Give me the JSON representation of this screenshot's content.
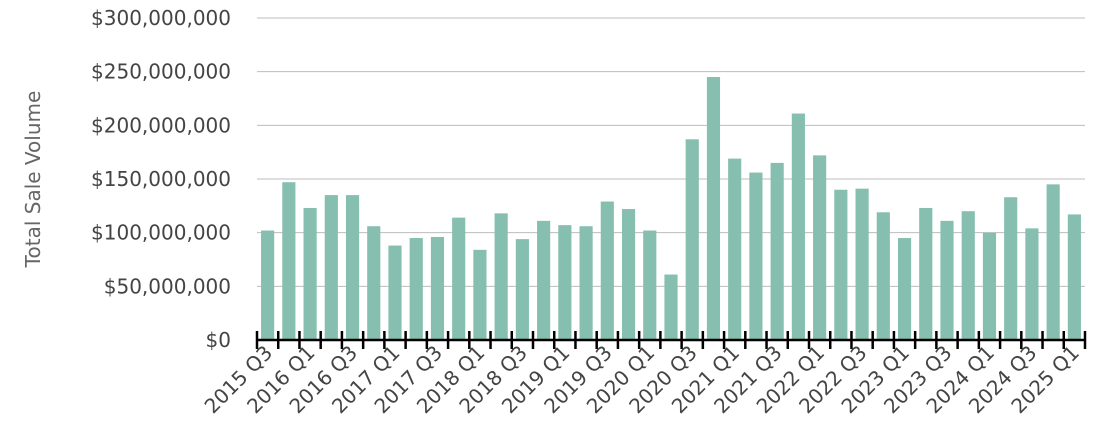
{
  "chart_data": {
    "type": "bar",
    "ylabel": "Total Sale Volume",
    "xlabel": "",
    "ylim": [
      0,
      300000000
    ],
    "yticks": [
      0,
      50000000,
      100000000,
      150000000,
      200000000,
      250000000,
      300000000
    ],
    "ytick_labels": [
      "$0",
      "$50,000,000",
      "$100,000,000",
      "$150,000,000",
      "$200,000,000",
      "$250,000,000",
      "$300,000,000"
    ],
    "grid": true,
    "bar_color": "#86bfb0",
    "categories": [
      "2015 Q3",
      "2015 Q4",
      "2016 Q1",
      "2016 Q2",
      "2016 Q3",
      "2016 Q4",
      "2017 Q1",
      "2017 Q2",
      "2017 Q3",
      "2017 Q4",
      "2018 Q1",
      "2018 Q2",
      "2018 Q3",
      "2018 Q4",
      "2019 Q1",
      "2019 Q2",
      "2019 Q3",
      "2019 Q4",
      "2020 Q1",
      "2020 Q2",
      "2020 Q3",
      "2020 Q4",
      "2021 Q1",
      "2021 Q2",
      "2021 Q3",
      "2021 Q4",
      "2022 Q1",
      "2022 Q2",
      "2022 Q3",
      "2022 Q4",
      "2023 Q1",
      "2023 Q2",
      "2023 Q3",
      "2023 Q4",
      "2024 Q1",
      "2024 Q2",
      "2024 Q3",
      "2024 Q4",
      "2025 Q1"
    ],
    "values": [
      102000000,
      147000000,
      123000000,
      135000000,
      135000000,
      106000000,
      88000000,
      95000000,
      96000000,
      114000000,
      84000000,
      118000000,
      94000000,
      111000000,
      107000000,
      106000000,
      129000000,
      122000000,
      102000000,
      61000000,
      187000000,
      245000000,
      169000000,
      156000000,
      165000000,
      211000000,
      172000000,
      140000000,
      141000000,
      119000000,
      95000000,
      123000000,
      111000000,
      120000000,
      100000000,
      133000000,
      104000000,
      145000000,
      117000000
    ],
    "visible_x_tick_labels": [
      "2015 Q3",
      "2016 Q1",
      "2016 Q3",
      "2017 Q1",
      "2017 Q3",
      "2018 Q1",
      "2018 Q3",
      "2019 Q1",
      "2019 Q3",
      "2020 Q1",
      "2020 Q3",
      "2021 Q1",
      "2021 Q3",
      "2022 Q1",
      "2022 Q3",
      "2023 Q1",
      "2023 Q3",
      "2024 Q1",
      "2024 Q3",
      "2025 Q1"
    ]
  }
}
